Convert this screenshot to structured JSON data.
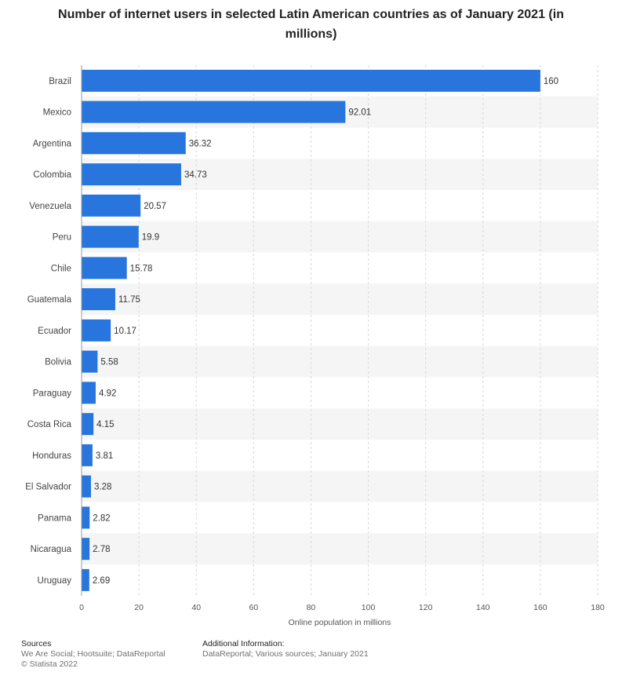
{
  "title": "Number of internet users in selected Latin American countries as of January 2021 (in millions)",
  "chart_data": {
    "type": "bar",
    "orientation": "horizontal",
    "categories": [
      "Brazil",
      "Mexico",
      "Argentina",
      "Colombia",
      "Venezuela",
      "Peru",
      "Chile",
      "Guatemala",
      "Ecuador",
      "Bolivia",
      "Paraguay",
      "Costa Rica",
      "Honduras",
      "El Salvador",
      "Panama",
      "Nicaragua",
      "Uruguay"
    ],
    "values": [
      160,
      92.01,
      36.32,
      34.73,
      20.57,
      19.9,
      15.78,
      11.75,
      10.17,
      5.58,
      4.92,
      4.15,
      3.81,
      3.28,
      2.82,
      2.78,
      2.69
    ],
    "value_labels": [
      "160",
      "92.01",
      "36.32",
      "34.73",
      "20.57",
      "19.9",
      "15.78",
      "11.75",
      "10.17",
      "5.58",
      "4.92",
      "4.15",
      "3.81",
      "3.28",
      "2.82",
      "2.78",
      "2.69"
    ],
    "xlabel": "Online population in millions",
    "xlim": [
      0,
      180
    ],
    "xticks": [
      0,
      20,
      40,
      60,
      80,
      100,
      120,
      140,
      160,
      180
    ],
    "grid": true,
    "legend": "none",
    "bar_color": "#2876dd"
  },
  "footer": {
    "sources_heading": "Sources",
    "sources_line": "We Are Social; Hootsuite; DataReportal",
    "copyright": "© Statista 2022",
    "additional_heading": "Additional Information:",
    "additional_line": "DataReportal; Various sources; January 2021"
  }
}
